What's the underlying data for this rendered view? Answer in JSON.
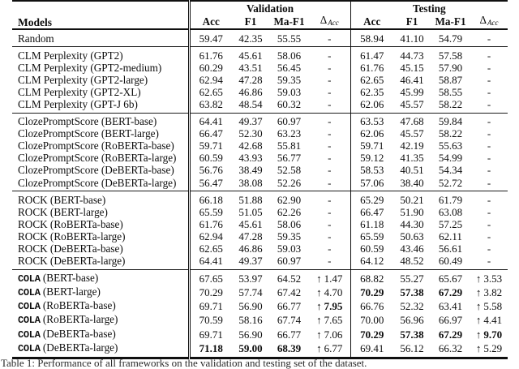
{
  "caption": "Table 1: Performance of all frameworks on the validation and testing set of the dataset.",
  "table": {
    "header": {
      "models": "Models",
      "validation": "Validation",
      "testing": "Testing",
      "acc": "Acc",
      "f1": "F1",
      "maf1": "Ma-F1",
      "delta_symbol": "Δ",
      "delta_sub": "Acc"
    },
    "sections": [
      {
        "id": "random",
        "rows": [
          {
            "name": "Random",
            "vals": [
              "59.47",
              "42.35",
              "55.55",
              "-",
              "58.94",
              "41.10",
              "54.79",
              "-"
            ]
          }
        ]
      },
      {
        "id": "clm-perplexity",
        "rows": [
          {
            "name": "CLM Perplexity (GPT2)",
            "vals": [
              "61.76",
              "45.61",
              "58.06",
              "-",
              "61.47",
              "44.73",
              "57.58",
              "-"
            ]
          },
          {
            "name": "CLM Perplexity (GPT2-medium)",
            "vals": [
              "60.29",
              "43.51",
              "56.45",
              "-",
              "61.76",
              "45.15",
              "57.90",
              "-"
            ]
          },
          {
            "name": "CLM Perplexity (GPT2-large)",
            "vals": [
              "62.94",
              "47.28",
              "59.35",
              "-",
              "62.65",
              "46.41",
              "58.87",
              "-"
            ]
          },
          {
            "name": "CLM Perplexity (GPT2-XL)",
            "vals": [
              "62.65",
              "46.86",
              "59.03",
              "-",
              "62.35",
              "45.99",
              "58.55",
              "-"
            ]
          },
          {
            "name": "CLM Perplexity (GPT-J 6b)",
            "vals": [
              "63.82",
              "48.54",
              "60.32",
              "-",
              "62.06",
              "45.57",
              "58.22",
              "-"
            ]
          }
        ]
      },
      {
        "id": "cloze-prompt-score",
        "rows": [
          {
            "name": "ClozePromptScore (BERT-base)",
            "vals": [
              "64.41",
              "49.37",
              "60.97",
              "-",
              "63.53",
              "47.68",
              "59.84",
              "-"
            ]
          },
          {
            "name": "ClozePromptScore (BERT-large)",
            "vals": [
              "66.47",
              "52.30",
              "63.23",
              "-",
              "62.06",
              "45.57",
              "58.22",
              "-"
            ]
          },
          {
            "name": "ClozePromptScore (RoBERTa-base)",
            "vals": [
              "59.71",
              "42.68",
              "55.81",
              "-",
              "59.71",
              "42.19",
              "55.63",
              "-"
            ]
          },
          {
            "name": "ClozePromptScore (RoBERTa-large)",
            "vals": [
              "60.59",
              "43.93",
              "56.77",
              "-",
              "59.12",
              "41.35",
              "54.99",
              "-"
            ]
          },
          {
            "name": "ClozePromptScore (DeBERTa-base)",
            "vals": [
              "56.76",
              "38.49",
              "52.58",
              "-",
              "58.53",
              "40.51",
              "54.34",
              "-"
            ]
          },
          {
            "name": "ClozePromptScore (DeBERTa-large)",
            "vals": [
              "56.47",
              "38.08",
              "52.26",
              "-",
              "57.06",
              "38.40",
              "52.72",
              "-"
            ]
          }
        ]
      },
      {
        "id": "rock",
        "rows": [
          {
            "name": "ROCK (BERT-base)",
            "vals": [
              "66.18",
              "51.88",
              "62.90",
              "-",
              "65.29",
              "50.21",
              "61.79",
              "-"
            ]
          },
          {
            "name": "ROCK (BERT-large)",
            "vals": [
              "65.59",
              "51.05",
              "62.26",
              "-",
              "66.47",
              "51.90",
              "63.08",
              "-"
            ]
          },
          {
            "name": "ROCK (RoBERTa-base)",
            "vals": [
              "61.76",
              "45.61",
              "58.06",
              "-",
              "61.18",
              "44.30",
              "57.25",
              "-"
            ]
          },
          {
            "name": "ROCK (RoBERTa-large)",
            "vals": [
              "62.94",
              "47.28",
              "59.35",
              "-",
              "65.59",
              "50.63",
              "62.11",
              "-"
            ]
          },
          {
            "name": "ROCK (DeBERTa-base)",
            "vals": [
              "62.65",
              "46.86",
              "59.03",
              "-",
              "60.59",
              "43.46",
              "56.61",
              "-"
            ]
          },
          {
            "name": "ROCK (DeBERTa-large)",
            "vals": [
              "64.41",
              "49.37",
              "60.97",
              "-",
              "64.12",
              "48.52",
              "60.49",
              "-"
            ]
          }
        ]
      },
      {
        "id": "cola",
        "rows": [
          {
            "mono": "COLA",
            "name": "(BERT-base)",
            "vals": [
              "67.65",
              "53.97",
              "64.52",
              "↑1.47",
              "68.82",
              "55.27",
              "65.67",
              "↑3.53"
            ],
            "bold": [
              0,
              0,
              0,
              0,
              0,
              0,
              0,
              0
            ]
          },
          {
            "mono": "COLA",
            "name": "(BERT-large)",
            "vals": [
              "70.29",
              "57.74",
              "67.42",
              "↑4.70",
              "70.29",
              "57.38",
              "67.29",
              "↑3.82"
            ],
            "bold": [
              0,
              0,
              0,
              0,
              1,
              1,
              1,
              0
            ]
          },
          {
            "mono": "COLA",
            "name": "(RoBERTa-base)",
            "vals": [
              "69.71",
              "56.90",
              "66.77",
              "↑7.95",
              "66.76",
              "52.32",
              "63.41",
              "↑5.58"
            ],
            "bold": [
              0,
              0,
              0,
              1,
              0,
              0,
              0,
              0
            ]
          },
          {
            "mono": "COLA",
            "name": "(RoBERTa-large)",
            "vals": [
              "70.59",
              "58.16",
              "67.74",
              "↑7.65",
              "70.00",
              "56.96",
              "66.97",
              "↑4.41"
            ],
            "bold": [
              0,
              0,
              0,
              0,
              0,
              0,
              0,
              0
            ]
          },
          {
            "mono": "COLA",
            "name": "(DeBERTa-base)",
            "vals": [
              "69.71",
              "56.90",
              "66.77",
              "↑7.06",
              "70.29",
              "57.38",
              "67.29",
              "↑9.70"
            ],
            "bold": [
              0,
              0,
              0,
              0,
              1,
              1,
              1,
              1
            ]
          },
          {
            "mono": "COLA",
            "name": "(DeBERTa-large)",
            "vals": [
              "71.18",
              "59.00",
              "68.39",
              "↑6.77",
              "69.41",
              "56.12",
              "66.32",
              "↑5.29"
            ],
            "bold": [
              1,
              1,
              1,
              0,
              0,
              0,
              0,
              0
            ]
          }
        ]
      }
    ]
  }
}
